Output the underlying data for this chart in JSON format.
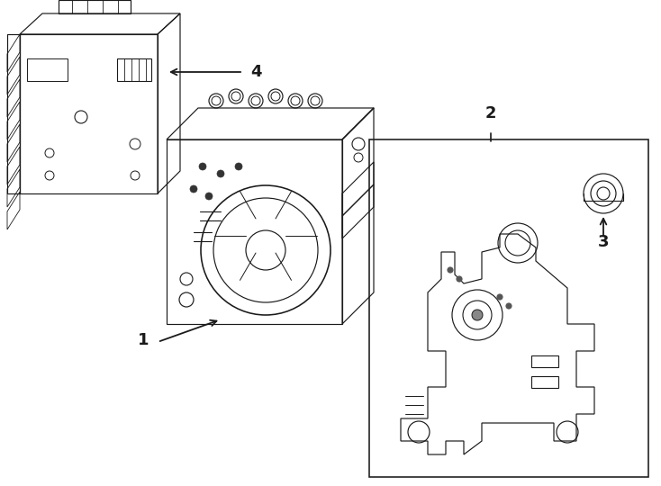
{
  "bg_color": "#ffffff",
  "line_color": "#1a1a1a",
  "fig_width": 7.34,
  "fig_height": 5.4,
  "dpi": 100,
  "lw": 0.85
}
